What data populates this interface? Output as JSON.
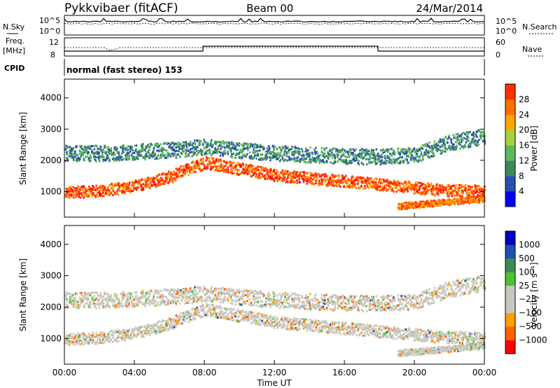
{
  "header": {
    "site": "Pykkvibaer (fitACF)",
    "beam": "Beam 00",
    "date": "24/Mar/2014"
  },
  "noise_panel": {
    "left_label": "N.Sky",
    "right_label": "N.Search",
    "left_ticks": [
      "10^5",
      "10^0"
    ],
    "right_ticks": [
      "10^5",
      "10^0"
    ]
  },
  "freq_panel": {
    "left_label_1": "Freq.",
    "left_label_2": "[MHz]",
    "right_label": "Nave",
    "left_ticks": [
      "12",
      "8"
    ],
    "right_ticks": [
      "60",
      "0"
    ]
  },
  "cpid_panel": {
    "label": "CPID",
    "text": "normal (fast stereo) 153"
  },
  "colors": {
    "power": [
      "#0000ff",
      "#2a4fb0",
      "#3c8a5a",
      "#5cb85c",
      "#a8d040",
      "#ffa500",
      "#ff7000",
      "#ff3000",
      "#ff0000"
    ],
    "velocity": [
      "#ff0000",
      "#ff6000",
      "#ffa000",
      "#c8c8c0",
      "#c8c8c0",
      "#50c030",
      "#3c8a5a",
      "#2050b0",
      "#0000c0"
    ]
  },
  "chart_data": [
    {
      "type": "heatmap",
      "panel": "power",
      "ylabel": "Slant Range [km]",
      "ylim": [
        180,
        4600
      ],
      "yticks": [
        "1000",
        "2000",
        "3000",
        "4000"
      ],
      "xlim": [
        0,
        24
      ],
      "colorbar": {
        "label": "Power [dB]",
        "ticks": [
          "4",
          "8",
          "12",
          "16",
          "20",
          "24",
          "28"
        ],
        "range": [
          0,
          32
        ]
      },
      "bands": [
        {
          "name": "near",
          "t": [
            0,
            2,
            4,
            6,
            7,
            8,
            10,
            12,
            14,
            16,
            18,
            20,
            22,
            24
          ],
          "range": [
            1000,
            1050,
            1200,
            1500,
            1750,
            1950,
            1750,
            1550,
            1450,
            1350,
            1250,
            1150,
            1050,
            1050
          ],
          "width": 380,
          "power": 26
        },
        {
          "name": "far",
          "t": [
            0,
            2,
            4,
            6,
            8,
            10,
            12,
            14,
            16,
            18,
            20,
            22,
            24
          ],
          "range": [
            2250,
            2250,
            2300,
            2350,
            2450,
            2350,
            2250,
            2200,
            2150,
            2150,
            2200,
            2600,
            2800
          ],
          "width": 500,
          "power": 8
        },
        {
          "name": "late",
          "t": [
            19,
            20,
            22,
            24
          ],
          "range": [
            550,
            600,
            700,
            800
          ],
          "width": 200,
          "power": 24
        }
      ]
    },
    {
      "type": "heatmap",
      "panel": "velocity",
      "ylabel": "Slant Range [km]",
      "ylim": [
        180,
        4600
      ],
      "yticks": [
        "1000",
        "2000",
        "3000",
        "4000"
      ],
      "xlim": [
        0,
        24
      ],
      "xlabel": "Time UT",
      "xticks": [
        "00:00",
        "04:00",
        "08:00",
        "12:00",
        "16:00",
        "20:00",
        "00:00"
      ],
      "colorbar": {
        "label": "Velocity [m s⁻¹]",
        "ticks": [
          "1000",
          "500",
          "100",
          "25",
          "−25",
          "−100",
          "−500",
          "−1000"
        ]
      }
    }
  ]
}
